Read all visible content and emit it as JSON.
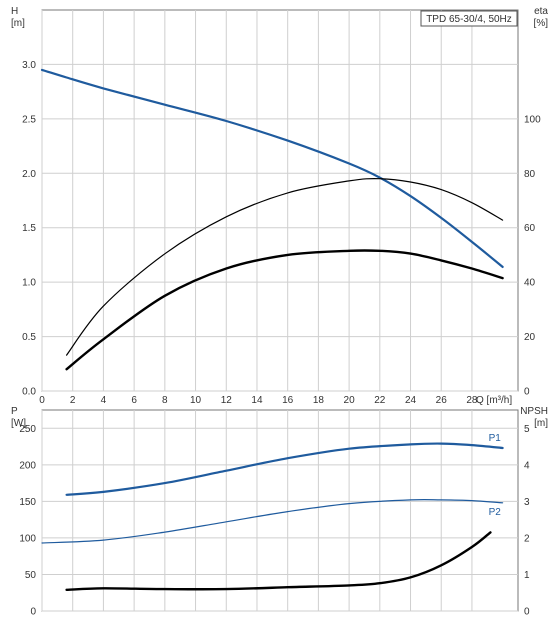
{
  "chart_data": [
    {
      "type": "line",
      "title": "TPD 65-30/4, 50Hz",
      "x_axis": {
        "label": "Q [m³/h]",
        "range": [
          0,
          31
        ],
        "ticks": [
          0,
          2,
          4,
          6,
          8,
          10,
          12,
          14,
          16,
          18,
          20,
          22,
          24,
          26,
          28
        ]
      },
      "y_left": {
        "label_line1": "H",
        "label_line2": "[m]",
        "range": [
          0,
          3.5
        ],
        "ticks": [
          "0.0",
          "0.5",
          "1.0",
          "1.5",
          "2.0",
          "2.5",
          "3.0"
        ]
      },
      "y_right": {
        "label_line1": "eta",
        "label_line2": "[%]",
        "range": [
          0,
          140
        ],
        "ticks": [
          "0",
          "20",
          "40",
          "60",
          "80",
          "100"
        ]
      },
      "grid": true,
      "series": [
        {
          "axis": "left",
          "color": "#1f5b9e",
          "width": 2.2,
          "x": [
            0,
            1.6,
            4,
            8,
            12,
            16,
            20,
            22,
            24,
            26,
            28,
            30
          ],
          "y": [
            2.95,
            2.88,
            2.78,
            2.63,
            2.48,
            2.3,
            2.09,
            1.96,
            1.79,
            1.59,
            1.37,
            1.14
          ]
        },
        {
          "axis": "left",
          "color": "#000000",
          "width": 1.2,
          "x": [
            1.6,
            4,
            8,
            12,
            16,
            20,
            22,
            24,
            26,
            28,
            30
          ],
          "y": [
            0.33,
            0.78,
            1.26,
            1.6,
            1.82,
            1.93,
            1.95,
            1.92,
            1.85,
            1.73,
            1.57
          ]
        },
        {
          "axis": "right",
          "color": "#000000",
          "width": 2.4,
          "x": [
            1.6,
            4,
            8,
            12,
            16,
            20,
            22,
            24,
            26,
            28,
            30
          ],
          "y": [
            8,
            19,
            35,
            45,
            50,
            51.5,
            51.5,
            50.5,
            48,
            45,
            41.5
          ]
        }
      ]
    },
    {
      "type": "line",
      "x_axis": {
        "range": [
          0,
          31
        ]
      },
      "y_left": {
        "label_line1": "P",
        "label_line2": "[W]",
        "range": [
          0,
          275
        ],
        "ticks": [
          "0",
          "50",
          "100",
          "150",
          "200",
          "250"
        ]
      },
      "y_right": {
        "label_line1": "NPSH",
        "label_line2": "[m]",
        "range": [
          0,
          5.5
        ],
        "ticks": [
          "0",
          "1",
          "2",
          "3",
          "4",
          "5"
        ]
      },
      "grid": true,
      "series": [
        {
          "name": "P1",
          "axis": "left",
          "color": "#1f5b9e",
          "width": 2.2,
          "x": [
            1.6,
            4,
            8,
            12,
            16,
            20,
            24,
            26,
            28,
            30
          ],
          "y": [
            159,
            163,
            175,
            192,
            209,
            222,
            228,
            229,
            227,
            223
          ]
        },
        {
          "name": "P2",
          "axis": "left",
          "color": "#1f5b9e",
          "width": 1.2,
          "x": [
            0,
            4,
            8,
            12,
            16,
            20,
            24,
            26,
            28,
            30
          ],
          "y": [
            93,
            97,
            108,
            122,
            136,
            147,
            152,
            152,
            151,
            148
          ]
        },
        {
          "axis": "right",
          "color": "#000000",
          "width": 2.4,
          "x": [
            1.6,
            4,
            8,
            12,
            16,
            20,
            22,
            24,
            26,
            28,
            29.2
          ],
          "y": [
            0.58,
            0.62,
            0.6,
            0.6,
            0.65,
            0.7,
            0.76,
            0.92,
            1.25,
            1.75,
            2.15
          ]
        }
      ]
    }
  ]
}
